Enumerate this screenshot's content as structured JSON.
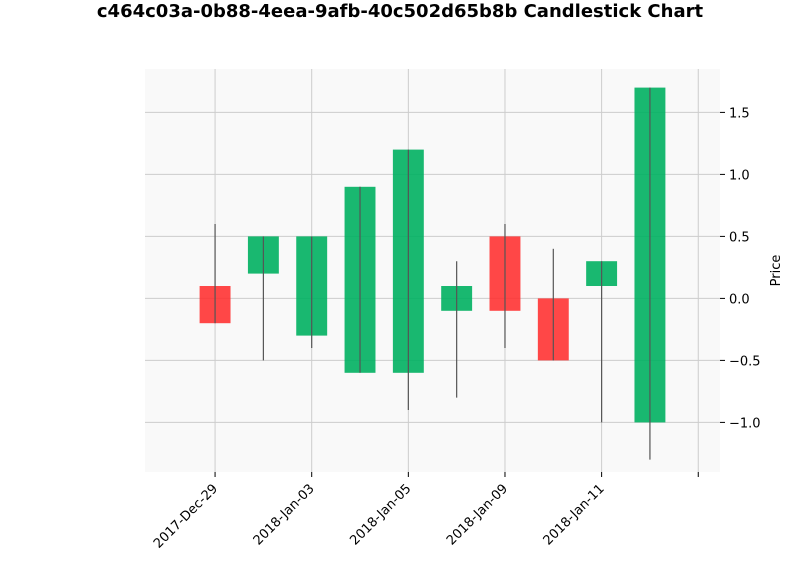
{
  "chart_data": {
    "type": "candlestick",
    "title": "c464c03a-0b88-4eea-9afb-40c502d65b8b Candlestick Chart",
    "ylabel": "Price",
    "xlabel": "",
    "ylim": [
      -1.4,
      1.85
    ],
    "y_ticks": [
      -1.0,
      -0.5,
      0.0,
      0.5,
      1.0,
      1.5
    ],
    "y_tick_labels": [
      "−1.0",
      "−0.5",
      "0.0",
      "0.5",
      "1.0",
      "1.5"
    ],
    "y_axis_side": "right",
    "x_tick_labels": [
      "2017-Dec-29",
      "2018-Jan-03",
      "2018-Jan-05",
      "2018-Jan-09",
      "2018-Jan-11"
    ],
    "x_tick_positions": [
      0,
      2,
      4,
      6,
      8
    ],
    "xlim": [
      -1.45,
      10.45
    ],
    "grid": true,
    "colors": {
      "up": "#00b060",
      "down": "#ff3333",
      "wick": "#555555",
      "plot_bg": "#f9f9f9",
      "grid": "#cccccc"
    },
    "candles": [
      {
        "open": 0.1,
        "close": -0.2,
        "high": 0.6,
        "low": -0.2
      },
      {
        "open": 0.2,
        "close": 0.5,
        "high": 0.5,
        "low": -0.5
      },
      {
        "open": -0.3,
        "close": 0.5,
        "high": 0.5,
        "low": -0.4
      },
      {
        "open": -0.6,
        "close": 0.9,
        "high": 0.9,
        "low": -0.6
      },
      {
        "open": -0.6,
        "close": 1.2,
        "high": 1.2,
        "low": -0.9
      },
      {
        "open": -0.1,
        "close": 0.1,
        "high": 0.3,
        "low": -0.8
      },
      {
        "open": 0.5,
        "close": -0.1,
        "high": 0.6,
        "low": -0.4
      },
      {
        "open": 0.0,
        "close": -0.5,
        "high": 0.4,
        "low": -0.5
      },
      {
        "open": 0.1,
        "close": 0.3,
        "high": 0.3,
        "low": -1.0
      },
      {
        "open": -1.0,
        "close": 1.7,
        "high": 1.7,
        "low": -1.3
      }
    ]
  }
}
